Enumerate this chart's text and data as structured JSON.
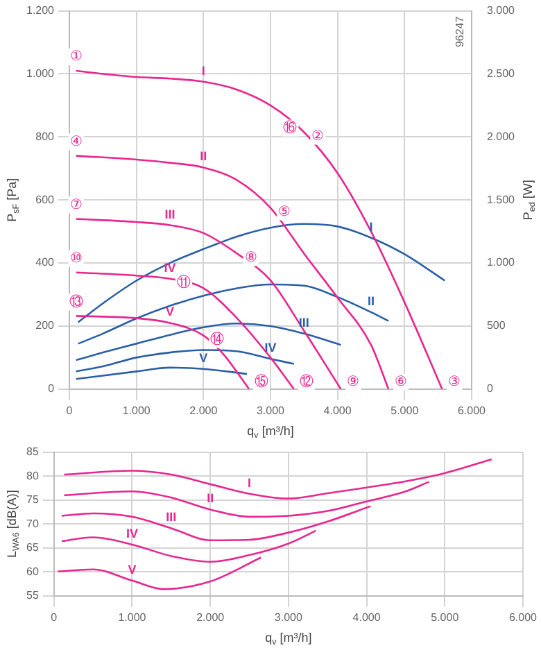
{
  "chart_data": [
    {
      "type": "line",
      "xlabel": "q$_{v}$ [m³/h]",
      "ylabel": "P$_{sF}$ [Pa]",
      "y2label": "P$_{ed}$ [W]",
      "xlim": [
        0,
        6000
      ],
      "xticks": [
        0,
        {
          "value": 1000,
          "label": "1.000"
        },
        {
          "value": 2000,
          "label": "2.000"
        },
        {
          "value": 3000,
          "label": "3.000"
        },
        {
          "value": 4000,
          "label": "4.000"
        },
        {
          "value": 5000,
          "label": "5.000"
        },
        {
          "value": 6000,
          "label": "6.000"
        }
      ],
      "ylim": [
        0,
        1200
      ],
      "yticks": [
        0,
        200,
        400,
        600,
        800,
        {
          "value": 1000,
          "label": "1.000"
        },
        {
          "value": 1200,
          "label": "1.200"
        }
      ],
      "y2lim": [
        0,
        3000
      ],
      "y2ticks": [
        0,
        500,
        {
          "value": 1000,
          "label": "1.000"
        },
        {
          "value": 1500,
          "label": "1.500"
        },
        {
          "value": 2000,
          "label": "2.000"
        },
        {
          "value": 2500,
          "label": "2.500"
        },
        {
          "value": 3000,
          "label": "3.000"
        }
      ],
      "grid": true,
      "legend": false,
      "marker": "none",
      "line_style": "solid",
      "series": [
        {
          "name": "I",
          "color": "#e8268f",
          "x": [
            100,
            500,
            1000,
            1500,
            2000,
            2500,
            3000,
            3500,
            4000,
            4500,
            5000,
            5560
          ],
          "values": [
            1010,
            1000,
            990,
            985,
            975,
            950,
            900,
            815,
            685,
            500,
            275,
            0
          ]
        },
        {
          "name": "II",
          "color": "#e8268f",
          "x": [
            100,
            1000,
            1500,
            2000,
            2500,
            3000,
            3500,
            4000,
            4500,
            4760
          ],
          "values": [
            740,
            728,
            718,
            703,
            663,
            575,
            430,
            290,
            140,
            0
          ]
        },
        {
          "name": "III",
          "color": "#e8268f",
          "x": [
            100,
            1000,
            1500,
            2000,
            2500,
            3000,
            3500,
            4050
          ],
          "values": [
            540,
            530,
            520,
            495,
            430,
            345,
            185,
            0
          ]
        },
        {
          "name": "IV",
          "color": "#e8268f",
          "x": [
            100,
            1000,
            1500,
            2000,
            2500,
            3000,
            3350
          ],
          "values": [
            370,
            360,
            350,
            320,
            225,
            100,
            0
          ]
        },
        {
          "name": "V",
          "color": "#e8268f",
          "x": [
            100,
            1000,
            1500,
            2000,
            2300,
            2680
          ],
          "values": [
            232,
            225,
            210,
            170,
            110,
            0
          ]
        },
        {
          "name": "I",
          "color": "#2a5fa8",
          "axis": "y2",
          "x": [
            130,
            500,
            1000,
            1500,
            2000,
            2500,
            3000,
            3500,
            4000,
            4500,
            5000,
            5600
          ],
          "values": [
            530,
            680,
            860,
            1000,
            1110,
            1210,
            1280,
            1310,
            1290,
            1200,
            1070,
            860
          ]
        },
        {
          "name": "II",
          "color": "#2a5fa8",
          "axis": "y2",
          "x": [
            130,
            500,
            1000,
            1500,
            2000,
            2500,
            3000,
            3500,
            4000,
            4500,
            4760
          ],
          "values": [
            360,
            440,
            560,
            660,
            740,
            800,
            830,
            820,
            730,
            610,
            540
          ]
        },
        {
          "name": "III",
          "color": "#2a5fa8",
          "axis": "y2",
          "x": [
            100,
            500,
            1000,
            1500,
            2000,
            2500,
            3000,
            3500,
            4050
          ],
          "values": [
            230,
            290,
            360,
            430,
            490,
            520,
            500,
            440,
            350
          ]
        },
        {
          "name": "IV",
          "color": "#2a5fa8",
          "axis": "y2",
          "x": [
            100,
            500,
            1000,
            1500,
            2000,
            2500,
            3000,
            3350
          ],
          "values": [
            140,
            180,
            250,
            290,
            310,
            300,
            240,
            200
          ]
        },
        {
          "name": "V",
          "color": "#2a5fa8",
          "axis": "y2",
          "x": [
            100,
            1000,
            1500,
            2000,
            2650
          ],
          "values": [
            80,
            140,
            170,
            160,
            120
          ]
        }
      ],
      "annotations": [
        "96247",
        {
          "text": "①",
          "x": 100,
          "y": 1010
        },
        {
          "text": "②",
          "x": 3500,
          "y": 815
        },
        {
          "text": "③",
          "x": 5560,
          "y": 0
        },
        {
          "text": "④",
          "x": 100,
          "y": 740
        },
        {
          "text": "⑤",
          "x": 3000,
          "y": 575
        },
        {
          "text": "⑥",
          "x": 4760,
          "y": 0
        },
        {
          "text": "⑦",
          "x": 100,
          "y": 540
        },
        {
          "text": "⑧",
          "x": 2500,
          "y": 430
        },
        {
          "text": "⑨",
          "x": 4050,
          "y": 0
        },
        {
          "text": "⑩",
          "x": 100,
          "y": 370
        },
        {
          "text": "⑪",
          "x": 1500,
          "y": 350
        },
        {
          "text": "⑫",
          "x": 3350,
          "y": 0
        },
        {
          "text": "⑬",
          "x": 100,
          "y": 232
        },
        {
          "text": "⑭",
          "x": 2000,
          "y": 170
        },
        {
          "text": "⑮",
          "x": 2680,
          "y": 0
        },
        {
          "text": "⑯",
          "x": 3500,
          "y": 815
        }
      ]
    },
    {
      "type": "line",
      "xlabel": "q$_{v}$ [m³/h]",
      "ylabel": "L$_{WA6}$ [dB(A)]",
      "xlim": [
        0,
        6000
      ],
      "xticks": [
        0,
        {
          "value": 1000,
          "label": "1.000"
        },
        {
          "value": 2000,
          "label": "2.000"
        },
        {
          "value": 3000,
          "label": "3.000"
        },
        {
          "value": 4000,
          "label": "4.000"
        },
        {
          "value": 5000,
          "label": "5.000"
        },
        {
          "value": 6000,
          "label": "6.000"
        }
      ],
      "ylim": [
        55,
        85
      ],
      "yticks": [
        55,
        60,
        65,
        70,
        75,
        80,
        85
      ],
      "grid": true,
      "legend": false,
      "marker": "none",
      "line_style": "solid",
      "series": [
        {
          "name": "I",
          "color": "#e8268f",
          "x": [
            130,
            1000,
            1500,
            2000,
            2500,
            3000,
            3500,
            4000,
            4500,
            5000,
            5600
          ],
          "values": [
            80.3,
            81.1,
            80.3,
            78.3,
            76.3,
            75.3,
            76.4,
            77.6,
            78.9,
            80.6,
            83.5
          ]
        },
        {
          "name": "II",
          "color": "#e8268f",
          "x": [
            130,
            1000,
            1500,
            2000,
            2500,
            3000,
            3500,
            4000,
            4500,
            4800
          ],
          "values": [
            76.0,
            76.8,
            75.5,
            73.0,
            71.5,
            71.7,
            72.7,
            74.7,
            76.8,
            78.8
          ]
        },
        {
          "name": "III",
          "color": "#e8268f",
          "x": [
            100,
            500,
            1000,
            1500,
            2000,
            2500,
            3000,
            3500,
            4050
          ],
          "values": [
            71.7,
            72.2,
            71.5,
            69.1,
            66.6,
            66.7,
            68.2,
            70.5,
            73.7
          ]
        },
        {
          "name": "IV",
          "color": "#e8268f",
          "x": [
            100,
            500,
            1000,
            1500,
            2000,
            2500,
            3000,
            3350
          ],
          "values": [
            66.4,
            67.2,
            65.7,
            63.3,
            62.1,
            63.5,
            65.9,
            68.6
          ]
        },
        {
          "name": "V",
          "color": "#e8268f",
          "x": [
            50,
            500,
            1000,
            1400,
            2000,
            2650
          ],
          "values": [
            60.1,
            60.5,
            58.2,
            56.4,
            58.0,
            63.0
          ]
        }
      ]
    }
  ]
}
